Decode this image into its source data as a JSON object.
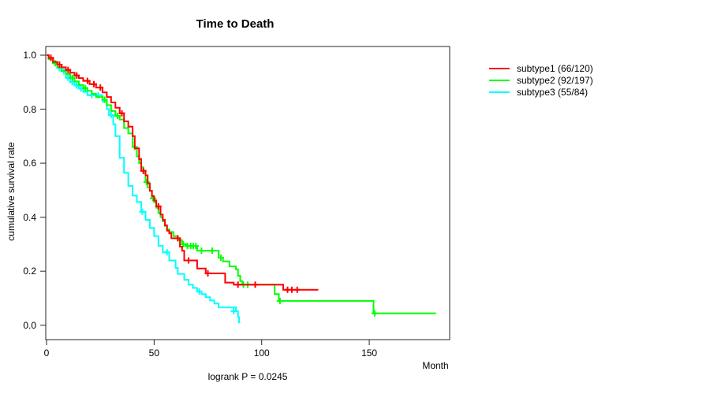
{
  "figure": {
    "title": "Time to Death",
    "x_axis_title": "Month",
    "y_axis_title": "cumulative survival rate",
    "footnote": "logrank P = 0.0245"
  },
  "legend": {
    "items": [
      {
        "label": "subtype1 (66/120)",
        "color": "#FF0000"
      },
      {
        "label": "subtype2 (92/197)",
        "color": "#00FF00"
      },
      {
        "label": "subtype3 (55/84)",
        "color": "#00FFFF"
      }
    ]
  },
  "chart_data": {
    "type": "line",
    "variant": "kaplan-meier-step",
    "title": "Time to Death",
    "xlabel": "Month",
    "ylabel": "cumulative survival rate",
    "annotation": "logrank P = 0.0245",
    "grid": false,
    "legend_position": "right-outside",
    "xlim": [
      0,
      187
    ],
    "ylim": [
      0,
      1.03
    ],
    "x_ticks": [
      0,
      50,
      100,
      150
    ],
    "y_ticks": [
      0.0,
      0.2,
      0.4,
      0.6,
      0.8,
      1.0
    ],
    "series": [
      {
        "name": "subtype1 (66/120)",
        "color": "#FF0000",
        "n_events": 66,
        "n_total": 120,
        "steps": [
          [
            0,
            1.0
          ],
          [
            1,
            0.99
          ],
          [
            3,
            0.975
          ],
          [
            5,
            0.965
          ],
          [
            7,
            0.955
          ],
          [
            9,
            0.945
          ],
          [
            11,
            0.935
          ],
          [
            13,
            0.925
          ],
          [
            15,
            0.915
          ],
          [
            17,
            0.905
          ],
          [
            20,
            0.893
          ],
          [
            23,
            0.88
          ],
          [
            26,
            0.862
          ],
          [
            28,
            0.845
          ],
          [
            30,
            0.825
          ],
          [
            32,
            0.805
          ],
          [
            34,
            0.785
          ],
          [
            36,
            0.755
          ],
          [
            38,
            0.735
          ],
          [
            40,
            0.7
          ],
          [
            41,
            0.655
          ],
          [
            43,
            0.615
          ],
          [
            44,
            0.572
          ],
          [
            46,
            0.555
          ],
          [
            47,
            0.525
          ],
          [
            48,
            0.498
          ],
          [
            49,
            0.478
          ],
          [
            50,
            0.462
          ],
          [
            51,
            0.44
          ],
          [
            53,
            0.41
          ],
          [
            54,
            0.39
          ],
          [
            55,
            0.37
          ],
          [
            56,
            0.35
          ],
          [
            57,
            0.34
          ],
          [
            58,
            0.322
          ],
          [
            62,
            0.291
          ],
          [
            63,
            0.276
          ],
          [
            64,
            0.24
          ],
          [
            70,
            0.21
          ],
          [
            74,
            0.192
          ],
          [
            83,
            0.158
          ],
          [
            87,
            0.15
          ],
          [
            110,
            0.131
          ]
        ],
        "end_month": 126.3,
        "censor_marks": [
          [
            2,
            0.99
          ],
          [
            6,
            0.965
          ],
          [
            10,
            0.945
          ],
          [
            14,
            0.925
          ],
          [
            19,
            0.905
          ],
          [
            22,
            0.893
          ],
          [
            25,
            0.88
          ],
          [
            35,
            0.785
          ],
          [
            45,
            0.572
          ],
          [
            52,
            0.44
          ],
          [
            61,
            0.322
          ],
          [
            66,
            0.24
          ],
          [
            75,
            0.192
          ],
          [
            89,
            0.15
          ],
          [
            97,
            0.15
          ],
          [
            112,
            0.131
          ],
          [
            114,
            0.131
          ],
          [
            116.5,
            0.131
          ]
        ]
      },
      {
        "name": "subtype2 (92/197)",
        "color": "#00FF00",
        "n_events": 92,
        "n_total": 197,
        "steps": [
          [
            0,
            1.0
          ],
          [
            1,
            0.985
          ],
          [
            3,
            0.97
          ],
          [
            5,
            0.955
          ],
          [
            7,
            0.942
          ],
          [
            9,
            0.93
          ],
          [
            11,
            0.916
          ],
          [
            13,
            0.903
          ],
          [
            15,
            0.89
          ],
          [
            17,
            0.878
          ],
          [
            19,
            0.868
          ],
          [
            21,
            0.857
          ],
          [
            23,
            0.845
          ],
          [
            26,
            0.835
          ],
          [
            28,
            0.815
          ],
          [
            30,
            0.793
          ],
          [
            32,
            0.775
          ],
          [
            34,
            0.762
          ],
          [
            36,
            0.73
          ],
          [
            38,
            0.71
          ],
          [
            40,
            0.66
          ],
          [
            42,
            0.625
          ],
          [
            43,
            0.6
          ],
          [
            44,
            0.585
          ],
          [
            45,
            0.563
          ],
          [
            46,
            0.53
          ],
          [
            47,
            0.51
          ],
          [
            48,
            0.497
          ],
          [
            49,
            0.47
          ],
          [
            50,
            0.455
          ],
          [
            51,
            0.435
          ],
          [
            52,
            0.415
          ],
          [
            53,
            0.4
          ],
          [
            54,
            0.385
          ],
          [
            55,
            0.368
          ],
          [
            56,
            0.355
          ],
          [
            57,
            0.345
          ],
          [
            59,
            0.33
          ],
          [
            61,
            0.315
          ],
          [
            63,
            0.3
          ],
          [
            65,
            0.293
          ],
          [
            70,
            0.276
          ],
          [
            80,
            0.25
          ],
          [
            82,
            0.236
          ],
          [
            85,
            0.218
          ],
          [
            88,
            0.207
          ],
          [
            89,
            0.183
          ],
          [
            90,
            0.163
          ],
          [
            91,
            0.15
          ],
          [
            106,
            0.115
          ],
          [
            108,
            0.09
          ],
          [
            152,
            0.044
          ]
        ],
        "end_month": 181,
        "censor_marks": [
          [
            4,
            0.97
          ],
          [
            12,
            0.916
          ],
          [
            18,
            0.878
          ],
          [
            27,
            0.835
          ],
          [
            33,
            0.775
          ],
          [
            41,
            0.66
          ],
          [
            46.5,
            0.53
          ],
          [
            49.5,
            0.47
          ],
          [
            63.5,
            0.3
          ],
          [
            65.5,
            0.293
          ],
          [
            67,
            0.293
          ],
          [
            68.2,
            0.293
          ],
          [
            69.4,
            0.293
          ],
          [
            72,
            0.276
          ],
          [
            77,
            0.276
          ],
          [
            81,
            0.25
          ],
          [
            91.5,
            0.15
          ],
          [
            93.5,
            0.15
          ],
          [
            108.5,
            0.09
          ],
          [
            152.5,
            0.044
          ]
        ]
      },
      {
        "name": "subtype3 (55/84)",
        "color": "#00FFFF",
        "n_events": 55,
        "n_total": 84,
        "steps": [
          [
            0,
            1.0
          ],
          [
            1,
            0.988
          ],
          [
            3,
            0.976
          ],
          [
            5,
            0.952
          ],
          [
            7,
            0.94
          ],
          [
            9,
            0.916
          ],
          [
            11,
            0.9
          ],
          [
            13,
            0.888
          ],
          [
            15,
            0.876
          ],
          [
            17,
            0.864
          ],
          [
            19,
            0.852
          ],
          [
            26,
            0.828
          ],
          [
            28,
            0.8
          ],
          [
            29,
            0.778
          ],
          [
            31,
            0.744
          ],
          [
            32,
            0.7
          ],
          [
            34,
            0.62
          ],
          [
            36,
            0.564
          ],
          [
            38,
            0.516
          ],
          [
            40,
            0.48
          ],
          [
            42,
            0.456
          ],
          [
            44,
            0.42
          ],
          [
            46,
            0.39
          ],
          [
            48,
            0.36
          ],
          [
            50,
            0.33
          ],
          [
            52,
            0.294
          ],
          [
            54,
            0.27
          ],
          [
            57,
            0.24
          ],
          [
            60,
            0.212
          ],
          [
            61,
            0.19
          ],
          [
            64,
            0.168
          ],
          [
            66,
            0.15
          ],
          [
            68,
            0.138
          ],
          [
            70,
            0.125
          ],
          [
            72,
            0.115
          ],
          [
            74,
            0.104
          ],
          [
            76,
            0.092
          ],
          [
            78,
            0.08
          ],
          [
            80,
            0.066
          ],
          [
            88,
            0.052
          ],
          [
            89,
            0.03
          ],
          [
            89.5,
            0.01
          ]
        ],
        "end_month": 90,
        "censor_marks": [
          [
            6,
            0.952
          ],
          [
            8,
            0.94
          ],
          [
            10,
            0.916
          ],
          [
            12,
            0.9
          ],
          [
            14,
            0.888
          ],
          [
            16,
            0.876
          ],
          [
            21,
            0.852
          ],
          [
            24,
            0.852
          ],
          [
            30,
            0.778
          ],
          [
            44.5,
            0.42
          ],
          [
            56,
            0.27
          ],
          [
            71,
            0.125
          ],
          [
            87,
            0.052
          ]
        ]
      }
    ]
  }
}
